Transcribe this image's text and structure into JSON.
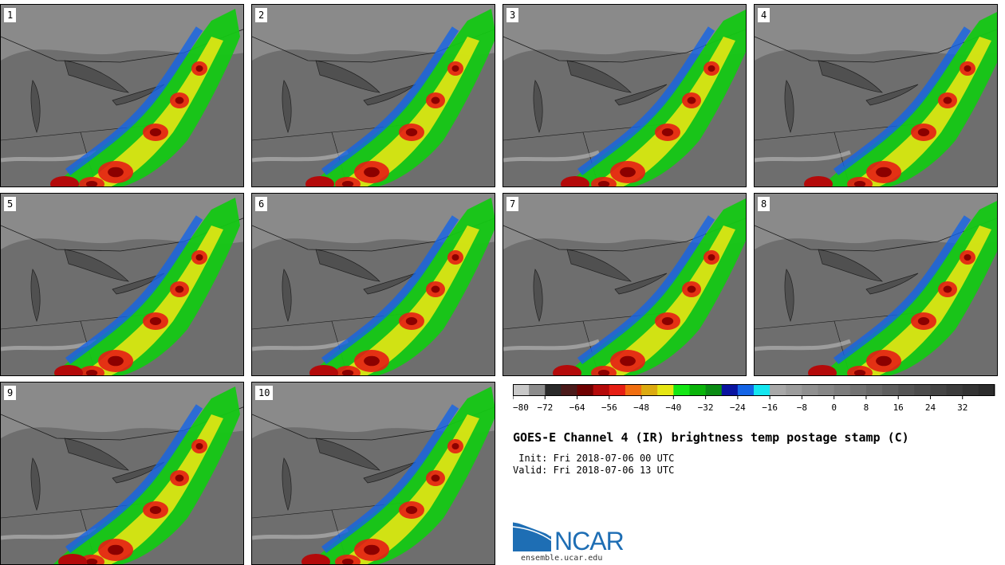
{
  "title": "GOES-E Channel 4 (IR) brightness temp postage stamp (C)",
  "init_text": " Init: Fri 2018-07-06 00 UTC",
  "valid_text": "Valid: Fri 2018-07-06 13 UTC",
  "logo_text": "NCAR",
  "website": "ensemble.ucar.edu",
  "panels": [
    "1",
    "2",
    "3",
    "4",
    "5",
    "6",
    "7",
    "8",
    "9",
    "10"
  ],
  "colorbar": {
    "tick_labels": [
      "−80",
      "−72",
      "−64",
      "−56",
      "−48",
      "−40",
      "−32",
      "−24",
      "−16",
      "−8",
      "0",
      "8",
      "16",
      "24",
      "32"
    ],
    "colors": [
      "#c8c8c8",
      "#8c8c8c",
      "#2a2a2a",
      "#4a1a1a",
      "#6e0000",
      "#b40a0a",
      "#e61e14",
      "#f06e10",
      "#dcaa10",
      "#e6e614",
      "#14e614",
      "#0ab40a",
      "#0a8c14",
      "#0a14a0",
      "#1464e6",
      "#14e6f0",
      "#a8a8a8",
      "#9c9c9c",
      "#909090",
      "#868686",
      "#7c7c7c",
      "#727272",
      "#686868",
      "#5e5e5e",
      "#545454",
      "#4c4c4c",
      "#444444",
      "#3c3c3c",
      "#343434",
      "#2c2c2c"
    ]
  },
  "colors": {
    "background": "#ffffff",
    "logo_blue": "#1e6eb4"
  }
}
